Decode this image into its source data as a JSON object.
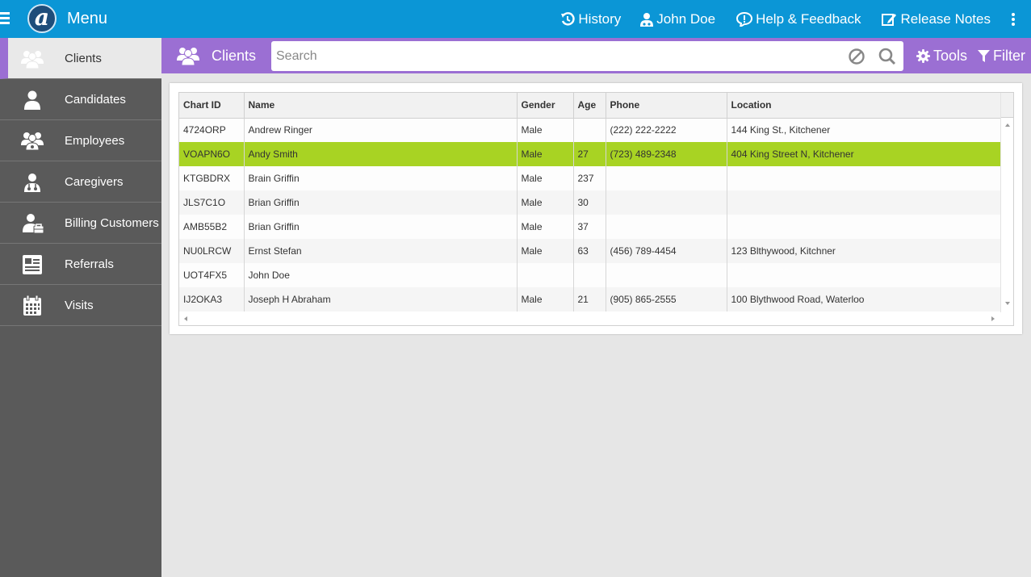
{
  "topbar": {
    "title": "Menu",
    "logo_letter": "a",
    "nav": {
      "history": "History",
      "user": "John Doe",
      "help": "Help & Feedback",
      "release_notes": "Release Notes"
    }
  },
  "sidebar": {
    "items": [
      {
        "label": "Clients",
        "icon": "clients-icon",
        "active": true
      },
      {
        "label": "Candidates",
        "icon": "candidates-icon"
      },
      {
        "label": "Employees",
        "icon": "employees-icon"
      },
      {
        "label": "Caregivers",
        "icon": "caregivers-icon"
      },
      {
        "label": "Billing Customers",
        "icon": "billing-customers-icon"
      },
      {
        "label": "Referrals",
        "icon": "referrals-icon"
      },
      {
        "label": "Visits",
        "icon": "calendar-icon"
      }
    ]
  },
  "subheader": {
    "title": "Clients",
    "search_placeholder": "Search",
    "search_value": "",
    "tools_label": "Tools",
    "filter_label": "Filter"
  },
  "table": {
    "columns": [
      "Chart ID",
      "Name",
      "Gender",
      "Age",
      "Phone",
      "Location"
    ],
    "rows": [
      [
        "4724ORP",
        "Andrew Ringer",
        "Male",
        "",
        "(222) 222-2222",
        "144 King St., Kitchener"
      ],
      [
        "VOAPN6O",
        "Andy Smith",
        "Male",
        "27",
        "(723) 489-2348",
        "404 King Street N, Kitchener"
      ],
      [
        "KTGBDRX",
        "Brain Griffin",
        "Male",
        "237",
        "",
        ""
      ],
      [
        "JLS7C1O",
        "Brian Griffin",
        "Male",
        "30",
        "",
        ""
      ],
      [
        "AMB55B2",
        "Brian Griffin",
        "Male",
        "37",
        "",
        ""
      ],
      [
        "NU0LRCW",
        "Ernst Stefan",
        "Male",
        "63",
        "(456) 789-4454",
        "123 Blthywood, Kitchner"
      ],
      [
        "UOT4FX5",
        "John Doe",
        "",
        "",
        "",
        ""
      ],
      [
        "IJ2OKA3",
        "Joseph H Abraham",
        "Male",
        "21",
        "(905) 865-2555",
        "100 Blythwood Road, Waterloo"
      ]
    ],
    "selected_row": 1
  },
  "colors": {
    "topbar": "#0b96d6",
    "subheader": "#9b6fd3",
    "sidebar": "#5a5a5a",
    "selected_row": "#a8d323"
  }
}
